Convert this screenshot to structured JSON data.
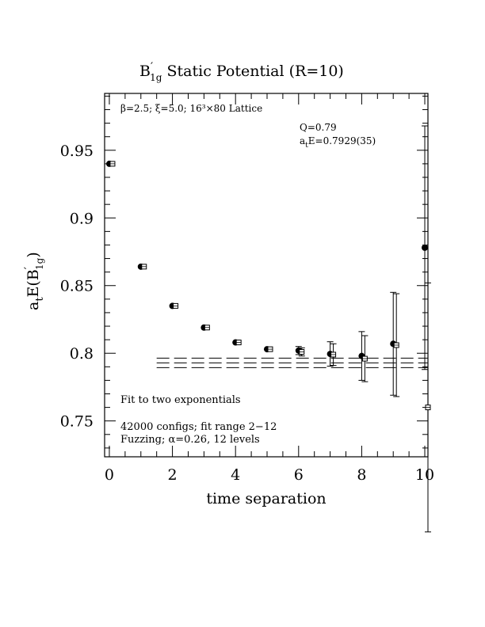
{
  "chart_data": {
    "type": "scatter",
    "title_main": "B",
    "title_prime": "′",
    "title_sub": "1g",
    "title_rest": " Static Potential (R=10)",
    "xlabel": "time separation",
    "ylabel_prefix": "a",
    "ylabel_prefix_sub": "t",
    "ylabel_mid": "E(B",
    "ylabel_prime": "′",
    "ylabel_sub": "1g",
    "ylabel_suffix": ")",
    "xlim": [
      -0.15,
      10.1
    ],
    "ylim": [
      0.7235,
      0.992
    ],
    "xticks": [
      "0",
      "2",
      "4",
      "6",
      "8",
      "10"
    ],
    "xtick_values": [
      0,
      2,
      4,
      6,
      8,
      10
    ],
    "yticks": [
      "0.75",
      "0.8",
      "0.85",
      "0.9",
      "0.95"
    ],
    "ytick_values": [
      0.75,
      0.8,
      0.85,
      0.9,
      0.95
    ],
    "annotations": {
      "lattice": "β=2.5; ξ=5.0; 16³×80 Lattice",
      "q": "Q=0.79",
      "energy_prefix": "a",
      "energy_sub": "t",
      "energy_rest": "E=0.7929(35)",
      "fit_desc": "Fit to two exponentials",
      "configs": "42000 configs; fit range 2−12",
      "fuzzing": "Fuzzing; α=0.26, 12 levels"
    },
    "series": [
      {
        "marker": "filled-circle",
        "x": [
          0,
          1,
          2,
          3,
          4,
          5,
          6,
          7,
          8,
          9,
          10
        ],
        "y": [
          0.94,
          0.864,
          0.835,
          0.819,
          0.808,
          0.803,
          0.802,
          0.7995,
          0.798,
          0.807,
          0.878
        ],
        "err": [
          0.0,
          0.0,
          0.0,
          0.0,
          0.0,
          0.0,
          0.003,
          0.009,
          0.018,
          0.038,
          0.09
        ]
      },
      {
        "marker": "open-square",
        "x": [
          0.1,
          1.1,
          2.1,
          3.1,
          4.1,
          5.1,
          6.1,
          7.1,
          8.1,
          9.1,
          10.1
        ],
        "y": [
          0.94,
          0.864,
          0.835,
          0.819,
          0.808,
          0.803,
          0.801,
          0.799,
          0.796,
          0.806,
          0.76
        ],
        "err": [
          0.0,
          0.0,
          0.0,
          0.0,
          0.0,
          0.0,
          0.003,
          0.008,
          0.017,
          0.038,
          0.092
        ]
      }
    ],
    "fit": {
      "x_range": [
        1.5,
        10.1
      ],
      "center": 0.7929,
      "upper": 0.7964,
      "lower": 0.7894
    }
  }
}
